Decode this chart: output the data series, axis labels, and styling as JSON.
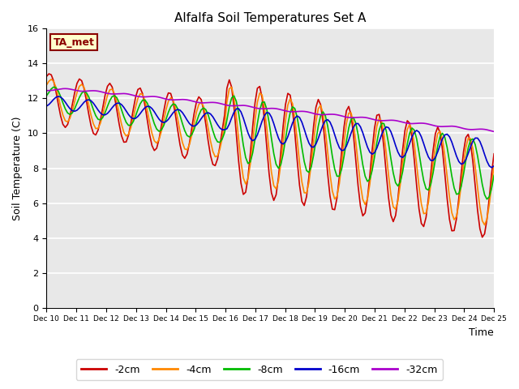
{
  "title": "Alfalfa Soil Temperatures Set A",
  "xlabel": "Time",
  "ylabel": "Soil Temperature (C)",
  "background_color": "#e8e8e8",
  "ylim": [
    0,
    16
  ],
  "yticks": [
    0,
    2,
    4,
    6,
    8,
    10,
    12,
    14,
    16
  ],
  "xtick_labels": [
    "Dec 10",
    "Dec 11",
    "Dec 12",
    "Dec 13",
    "Dec 14",
    "Dec 15",
    "Dec 16",
    "Dec 17",
    "Dec 18",
    "Dec 19",
    "Dec 20",
    "Dec 21",
    "Dec 22",
    "Dec 23",
    "Dec 24",
    "Dec 25"
  ],
  "annotation_text": "TA_met",
  "series_order": [
    "-2cm",
    "-4cm",
    "-8cm",
    "-16cm",
    "-32cm"
  ],
  "series_colors": {
    "-2cm": "#cc0000",
    "-4cm": "#ff8800",
    "-8cm": "#00bb00",
    "-16cm": "#0000cc",
    "-32cm": "#aa00cc"
  }
}
